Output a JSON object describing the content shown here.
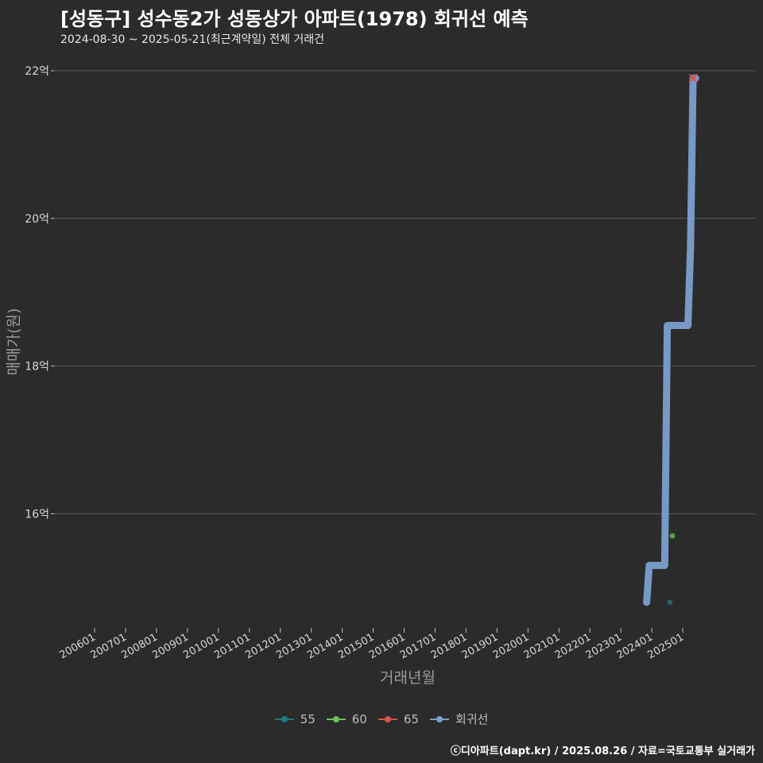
{
  "title": "[성동구] 성수동2가 성동상가 아파트(1978) 회귀선 예측",
  "subtitle": "2024-08-30 ~ 2025-05-21(최근계약일) 전체 거래건",
  "footer": "ⓒ디아파트(dapt.kr) / 2025.08.26 / 자료=국토교통부 실거래가",
  "colors": {
    "background": "#2b2b2b",
    "grid": "#5a5a5a",
    "s55": "#1f7a7a",
    "s60": "#6fbf5f",
    "s65": "#d9534f",
    "regression": "#7b9fcf"
  },
  "chart_data": {
    "type": "scatter",
    "title": "[성동구] 성수동2가 성동상가 아파트(1978) 회귀선 예측",
    "xlabel": "거래년월",
    "ylabel": "매매가(원)",
    "x_ticks": [
      "200601",
      "200701",
      "200801",
      "200901",
      "201001",
      "201101",
      "201201",
      "201301",
      "201401",
      "201501",
      "201601",
      "201701",
      "201801",
      "201901",
      "202001",
      "202101",
      "202201",
      "202301",
      "202401",
      "202501"
    ],
    "y_ticks": [
      16,
      18,
      20,
      22
    ],
    "y_tick_labels": [
      "16억",
      "18억",
      "20억",
      "22억"
    ],
    "ylim": [
      14.45,
      22.2
    ],
    "grid": true,
    "legend_position": "bottom",
    "legend": [
      "55",
      "60",
      "65",
      "회귀선"
    ],
    "series": [
      {
        "name": "55",
        "points": [
          {
            "x": "2024-08",
            "y": 14.8
          }
        ]
      },
      {
        "name": "60",
        "points": [
          {
            "x": "2024-09",
            "y": 15.7
          }
        ]
      },
      {
        "name": "65",
        "points": [
          {
            "x": "2025-05",
            "y": 21.9
          }
        ]
      },
      {
        "name": "회귀선",
        "line": [
          {
            "x": "2023-11",
            "y": 14.8
          },
          {
            "x": "2023-12",
            "y": 15.3
          },
          {
            "x": "2024-06",
            "y": 15.3
          },
          {
            "x": "2024-07",
            "y": 18.55
          },
          {
            "x": "2025-03",
            "y": 18.55
          },
          {
            "x": "2025-04",
            "y": 19.6
          },
          {
            "x": "2025-05",
            "y": 21.9
          },
          {
            "x": "2025-06",
            "y": 21.9
          }
        ]
      }
    ]
  }
}
